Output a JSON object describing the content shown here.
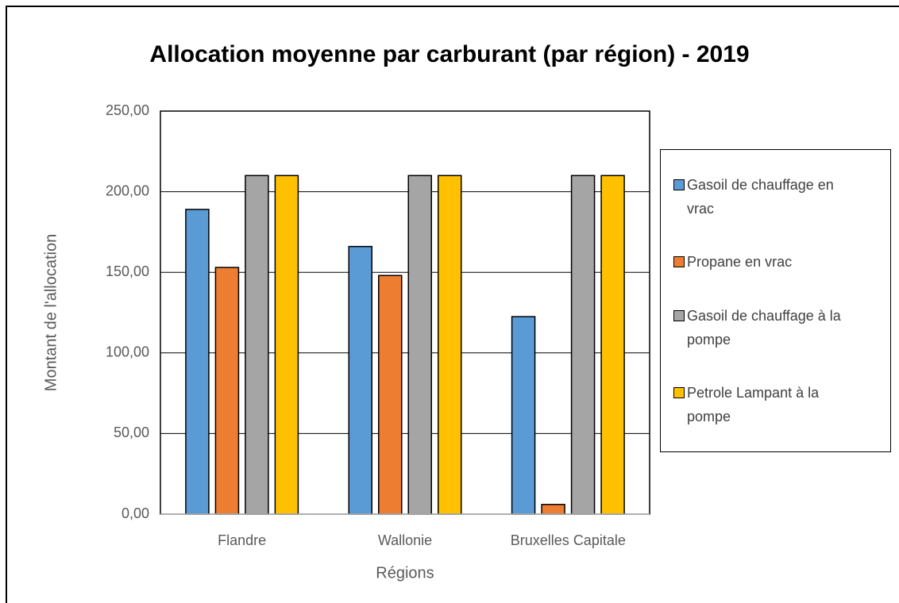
{
  "chart_data": {
    "type": "bar",
    "title": "Allocation moyenne par carburant (par région) - 2019",
    "x_label": "Régions",
    "y_label": "Montant de l'allocation",
    "categories": [
      "Flandre",
      "Wallonie",
      "Bruxelles Capitale"
    ],
    "series": [
      {
        "name": "Gasoil de chauffage en vrac",
        "color": "#5b9bd5",
        "values": [
          189,
          166,
          122.5
        ]
      },
      {
        "name": "Propane en vrac",
        "color": "#ed7d31",
        "values": [
          153,
          148,
          6
        ]
      },
      {
        "name": "Gasoil de chauffage à la pompe",
        "color": "#a5a5a5",
        "values": [
          210,
          210,
          210
        ]
      },
      {
        "name": "Petrole Lampant à la pompe",
        "color": "#ffc000",
        "values": [
          210,
          210,
          210
        ]
      }
    ],
    "ylim": [
      0,
      250
    ],
    "yticks": [
      {
        "value": 0,
        "label": "0,00"
      },
      {
        "value": 50,
        "label": "50,00"
      },
      {
        "value": 100,
        "label": "100,00"
      },
      {
        "value": 150,
        "label": "150,00"
      },
      {
        "value": 200,
        "label": "200,00"
      },
      {
        "value": 250,
        "label": "250,00"
      }
    ],
    "grid": true,
    "legend": "right"
  }
}
